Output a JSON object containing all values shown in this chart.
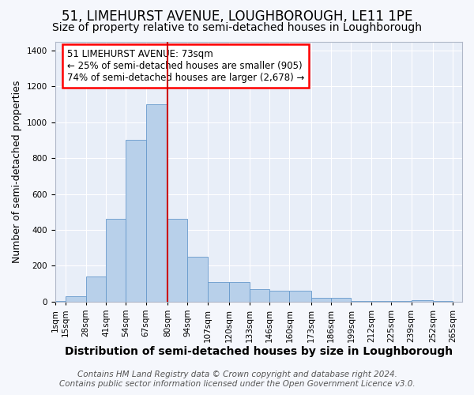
{
  "title": "51, LIMEHURST AVENUE, LOUGHBOROUGH, LE11 1PE",
  "subtitle": "Size of property relative to semi-detached houses in Loughborough",
  "xlabel": "Distribution of semi-detached houses by size in Loughborough",
  "ylabel": "Number of semi-detached properties",
  "footer_line1": "Contains HM Land Registry data © Crown copyright and database right 2024.",
  "footer_line2": "Contains public sector information licensed under the Open Government Licence v3.0.",
  "annotation_text_line1": "51 LIMEHURST AVENUE: 73sqm",
  "annotation_text_line2": "← 25% of semi-detached houses are smaller (905)",
  "annotation_text_line3": "74% of semi-detached houses are larger (2,678) →",
  "bar_lefts": [
    1,
    8,
    21,
    34,
    47,
    60,
    74,
    87,
    100,
    114,
    127,
    140,
    153,
    167,
    180,
    193,
    206,
    219,
    232,
    246
  ],
  "bar_rights": [
    8,
    21,
    34,
    47,
    60,
    74,
    87,
    100,
    114,
    127,
    140,
    153,
    167,
    180,
    193,
    206,
    219,
    232,
    246,
    259
  ],
  "bar_heights": [
    5,
    30,
    140,
    460,
    900,
    1100,
    460,
    250,
    110,
    110,
    70,
    60,
    60,
    20,
    20,
    5,
    5,
    3,
    10,
    3
  ],
  "tick_positions": [
    1,
    8,
    21,
    34,
    47,
    60,
    74,
    87,
    100,
    114,
    127,
    140,
    153,
    167,
    180,
    193,
    206,
    219,
    232,
    246,
    259
  ],
  "tick_labels": [
    "1sqm",
    "15sqm",
    "28sqm",
    "41sqm",
    "54sqm",
    "67sqm",
    "80sqm",
    "94sqm",
    "107sqm",
    "120sqm",
    "133sqm",
    "146sqm",
    "160sqm",
    "173sqm",
    "186sqm",
    "199sqm",
    "212sqm",
    "225sqm",
    "239sqm",
    "252sqm",
    "265sqm"
  ],
  "bar_color": "#b8d0ea",
  "bar_edge_color": "#6699cc",
  "vline_x": 74,
  "vline_color": "#cc0000",
  "ylim": [
    0,
    1450
  ],
  "yticks": [
    0,
    200,
    400,
    600,
    800,
    1000,
    1200,
    1400
  ],
  "xlim": [
    1,
    265
  ],
  "background_color": "#f5f7fc",
  "plot_bg_color": "#e8eef8",
  "grid_color": "#ffffff",
  "title_fontsize": 12,
  "subtitle_fontsize": 10,
  "axis_label_fontsize": 9,
  "tick_fontsize": 7.5,
  "annotation_fontsize": 8.5,
  "footer_fontsize": 7.5
}
